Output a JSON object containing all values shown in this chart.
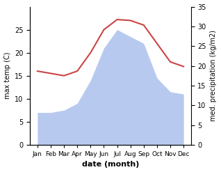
{
  "months": [
    "Jan",
    "Feb",
    "Mar",
    "Apr",
    "May",
    "Jun",
    "Jul",
    "Aug",
    "Sep",
    "Oct",
    "Nov",
    "Dec"
  ],
  "temperature": [
    16.0,
    15.5,
    15.0,
    16.0,
    20.0,
    25.0,
    27.2,
    27.0,
    26.0,
    22.0,
    18.0,
    17.0
  ],
  "precipitation": [
    7.0,
    7.0,
    7.5,
    9.0,
    14.0,
    21.0,
    25.0,
    23.5,
    22.0,
    14.5,
    11.5,
    11.0
  ],
  "temp_color": "#cc4444",
  "precip_color": "#b8c9f0",
  "ylabel_left": "max temp (C)",
  "ylabel_right": "med. precipitation (kg/m2)",
  "xlabel": "date (month)",
  "ylim_left": [
    0,
    30
  ],
  "ylim_right": [
    0,
    35
  ],
  "yticks_left": [
    0,
    5,
    10,
    15,
    20,
    25
  ],
  "yticks_right": [
    0,
    5,
    10,
    15,
    20,
    25,
    30,
    35
  ],
  "temp_linewidth": 1.5,
  "figsize": [
    3.18,
    2.47
  ],
  "dpi": 100
}
